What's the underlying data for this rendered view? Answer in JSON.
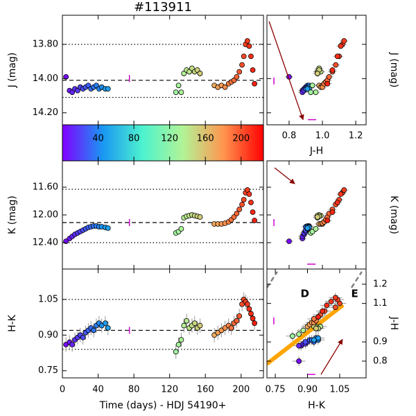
{
  "chart_data": {
    "type": "scatter",
    "title": "#113911",
    "time": [
      4,
      8,
      11,
      14,
      17,
      20,
      23,
      26,
      29,
      32,
      35,
      38,
      41,
      44,
      48,
      51,
      127,
      130,
      133,
      136,
      139,
      142,
      145,
      148,
      151,
      154,
      170,
      174,
      178,
      182,
      186,
      189,
      192,
      195,
      198,
      201,
      203,
      205,
      207,
      209,
      211,
      213,
      215
    ],
    "J": [
      13.99,
      14.07,
      14.08,
      14.06,
      14.07,
      14.05,
      14.06,
      14.05,
      14.04,
      14.06,
      14.05,
      14.04,
      14.06,
      14.05,
      14.06,
      14.06,
      14.08,
      14.04,
      14.08,
      13.97,
      13.95,
      13.96,
      13.94,
      13.96,
      13.95,
      13.97,
      14.04,
      14.05,
      14.04,
      14.05,
      14.03,
      14.02,
      14.01,
      13.99,
      13.96,
      13.92,
      13.87,
      13.8,
      13.78,
      13.81,
      13.87,
      13.95,
      14.03
    ],
    "K": [
      12.38,
      12.34,
      12.31,
      12.28,
      12.26,
      12.24,
      12.22,
      12.2,
      12.18,
      12.17,
      12.16,
      12.16,
      12.17,
      12.17,
      12.18,
      12.19,
      12.26,
      12.24,
      12.2,
      12.04,
      12.02,
      12.01,
      12.0,
      12.01,
      12.02,
      12.03,
      12.13,
      12.13,
      12.13,
      12.12,
      12.1,
      12.07,
      12.03,
      11.98,
      11.92,
      11.85,
      11.78,
      11.68,
      11.64,
      11.7,
      11.82,
      11.96,
      12.08
    ],
    "H_K": [
      0.86,
      0.87,
      0.86,
      0.88,
      0.89,
      0.9,
      0.89,
      0.91,
      0.92,
      0.93,
      0.92,
      0.94,
      0.95,
      0.94,
      0.95,
      0.93,
      0.83,
      0.86,
      0.88,
      0.94,
      0.96,
      0.93,
      0.94,
      0.95,
      0.93,
      0.94,
      0.9,
      0.91,
      0.92,
      0.93,
      0.94,
      0.93,
      0.95,
      0.96,
      0.98,
      1.03,
      1.05,
      1.04,
      1.03,
      1.01,
      0.99,
      0.97,
      0.95
    ],
    "J_H": [
      0.8,
      0.88,
      0.88,
      0.89,
      0.89,
      0.9,
      0.9,
      0.91,
      0.91,
      0.9,
      0.91,
      0.92,
      0.91,
      0.92,
      0.92,
      0.91,
      0.93,
      0.94,
      0.96,
      0.97,
      0.98,
      0.99,
      0.98,
      0.97,
      0.98,
      0.97,
      0.98,
      0.99,
      1.0,
      1.0,
      1.01,
      1.02,
      1.03,
      1.04,
      1.06,
      1.08,
      1.1,
      1.12,
      1.13,
      1.11,
      1.09,
      1.06,
      1.03
    ],
    "errors": {
      "J": 0.015,
      "K": 0.02,
      "H_K": 0.03,
      "J_H": 0.025
    },
    "time_xlim": [
      0,
      225
    ],
    "time_xticks": [
      0,
      40,
      80,
      120,
      160,
      200
    ],
    "colorbar": {
      "clim": [
        0,
        225
      ],
      "ticks": [
        40,
        80,
        120,
        160,
        200
      ],
      "colors": [
        "#8000ff",
        "#1996f3",
        "#4df3ce",
        "#b2f396",
        "#ff964f",
        "#ff0000"
      ]
    },
    "panels": [
      {
        "x": "time",
        "y": "J",
        "ylabel": "J (mag)",
        "ylim": [
          14.27,
          13.63
        ],
        "ytick_labels": true,
        "yticks": [
          {
            "value": 13.8,
            "label": "13.80"
          },
          {
            "value": 14.0,
            "label": "14.00"
          },
          {
            "value": 14.2,
            "label": "14.20"
          }
        ],
        "hlines": [
          {
            "value": 14.01,
            "style": "dashed"
          },
          {
            "value": 13.8,
            "style": "dotted"
          },
          {
            "value": 14.11,
            "style": "dotted"
          }
        ],
        "error_markers": [
          {
            "x": 75,
            "y": 14.0,
            "dir": "v"
          }
        ]
      },
      {
        "x": "time",
        "y": "K",
        "ylabel": "K (mag)",
        "ylim": [
          12.78,
          11.22
        ],
        "ytick_labels": true,
        "yticks": [
          {
            "value": 11.6,
            "label": "11.60"
          },
          {
            "value": 12.0,
            "label": "12.00"
          },
          {
            "value": 12.4,
            "label": "12.40"
          }
        ],
        "hlines": [
          {
            "value": 12.11,
            "style": "dashed"
          },
          {
            "value": 11.63,
            "style": "dotted"
          },
          {
            "value": 12.4,
            "style": "dotted"
          }
        ],
        "error_markers": [
          {
            "x": 75,
            "y": 12.11,
            "dir": "v"
          }
        ]
      },
      {
        "x": "time",
        "y": "H_K",
        "ylabel": "H-K",
        "xlabel": "Time (days) - HDJ 54190+",
        "ylim": [
          0.72,
          1.178
        ],
        "ytick_labels": true,
        "xtick_labels": true,
        "yticks": [
          {
            "value": 0.75,
            "label": "0.75"
          },
          {
            "value": 0.9,
            "label": "0.90"
          },
          {
            "value": 1.05,
            "label": "1.05"
          }
        ],
        "hlines": [
          {
            "value": 0.92,
            "style": "dashed"
          },
          {
            "value": 1.05,
            "style": "dotted"
          },
          {
            "value": 0.84,
            "style": "dotted"
          }
        ],
        "error_markers": [
          {
            "x": 75,
            "y": 0.92,
            "dir": "v"
          }
        ]
      },
      {
        "x": "J_H",
        "y": "J",
        "xlabel": "J-H",
        "ylabel": "J (mag)",
        "xlim": [
          0.667,
          1.262
        ],
        "xticks": [
          0.8,
          {
            "value": 1,
            "label": "1.0"
          },
          1.2
        ],
        "xtick_labels": true,
        "ylim": [
          14.27,
          13.63
        ],
        "yticks": [
          13.8,
          14.0,
          14.2
        ],
        "arrow": {
          "x": [
            0.68,
            0.884
          ],
          "y": [
            13.666,
            14.24
          ]
        },
        "error_markers": [
          {
            "x": 0.709,
            "y": 14.014,
            "dir": "v"
          },
          {
            "x": 0.938,
            "y": 14.24,
            "dir": "h"
          }
        ]
      },
      {
        "x": "J_H",
        "y": "K",
        "ylabel": "K (mag)",
        "xlim": [
          0.667,
          1.262
        ],
        "xticks": [
          0.8,
          1,
          1.2
        ],
        "ylim": [
          12.78,
          11.22
        ],
        "yticks": [
          11.6,
          12.0,
          12.4
        ],
        "arrow": {
          "x": [
            0.713,
            0.834
          ],
          "y": [
            11.32,
            11.55
          ]
        },
        "error_markers": [
          {
            "x": 0.709,
            "y": 12.11,
            "dir": "v"
          },
          {
            "x": 0.934,
            "y": 12.71,
            "dir": "h"
          }
        ]
      },
      {
        "x": "H_K",
        "y": "J_H",
        "xlabel": "H-K",
        "ylabel": "J-H",
        "xlim": [
          0.711,
          1.173
        ],
        "xticks": [
          0.75,
          {
            "value": 0.9,
            "label": "0.90"
          },
          1.05
        ],
        "xtick_labels": true,
        "ylim": [
          0.713,
          1.279
        ],
        "yticks": [
          0.8,
          0.9,
          1.1,
          1.2
        ],
        "ytick_labels": true,
        "fit_line": {
          "x": [
            0.711,
            1.066
          ],
          "y": [
            0.786,
            1.092
          ],
          "color": "#ffa500"
        },
        "dashed_lines": [
          {
            "x": [
              0.711,
              0.759
            ],
            "y": [
              1.182,
              1.265
            ]
          },
          {
            "x": [
              1.105,
              1.153
            ],
            "y": [
              1.182,
              1.265
            ]
          }
        ],
        "labels": [
          {
            "text": "D",
            "x": 0.888,
            "y": 1.15
          },
          {
            "text": "E",
            "x": 1.12,
            "y": 1.15
          }
        ],
        "arrow": {
          "x": [
            0.963,
            1.063
          ],
          "y": [
            0.731,
            0.913
          ]
        },
        "error_markers": [
          {
            "x": 0.743,
            "y": 1.009,
            "dir": "v"
          },
          {
            "x": 0.917,
            "y": 0.731,
            "dir": "h"
          }
        ]
      }
    ]
  }
}
